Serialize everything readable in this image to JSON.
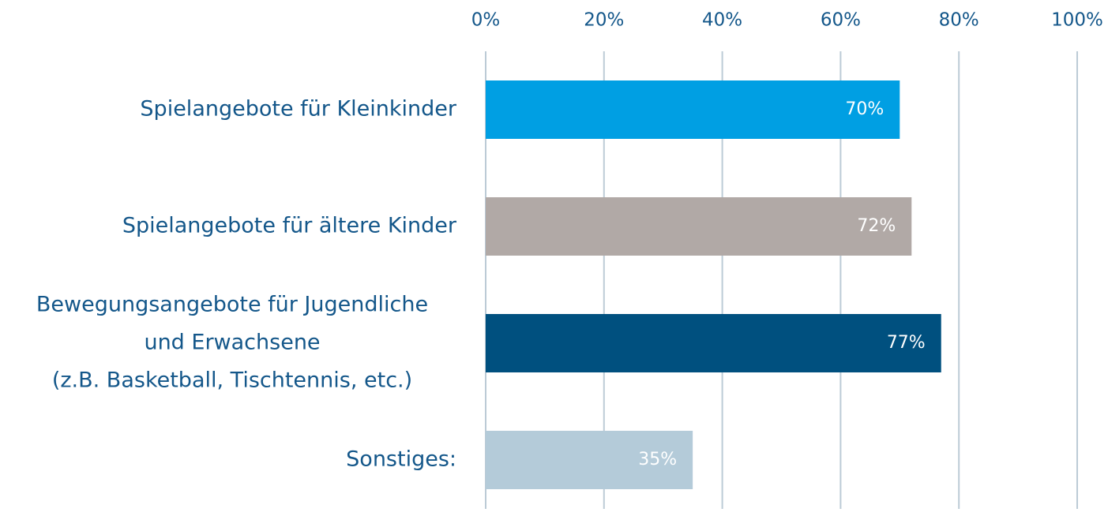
{
  "chart_data": {
    "type": "bar",
    "orientation": "horizontal",
    "categories": [
      "Spielangebote für Kleinkinder",
      "Spielangebote für ältere Kinder",
      [
        "Bewegungsangebote für Jugendliche",
        "und Erwachsene",
        "(z.B. Basketball, Tischtennis, etc.)"
      ],
      "Sonstiges:"
    ],
    "values": [
      70,
      72,
      77,
      35
    ],
    "value_labels": [
      "70%",
      "72%",
      "77%",
      "35%"
    ],
    "colors": [
      "#009fe3",
      "#b1a9a6",
      "#00507f",
      "#b4cbd9"
    ],
    "xlim": [
      0,
      100
    ],
    "xticks": [
      {
        "value": 0,
        "label": "0%"
      },
      {
        "value": 20,
        "label": "20%"
      },
      {
        "value": 40,
        "label": "40%"
      },
      {
        "value": 60,
        "label": "60%"
      },
      {
        "value": 80,
        "label": "80%"
      },
      {
        "value": 100,
        "label": "100%"
      }
    ],
    "grid": true
  }
}
